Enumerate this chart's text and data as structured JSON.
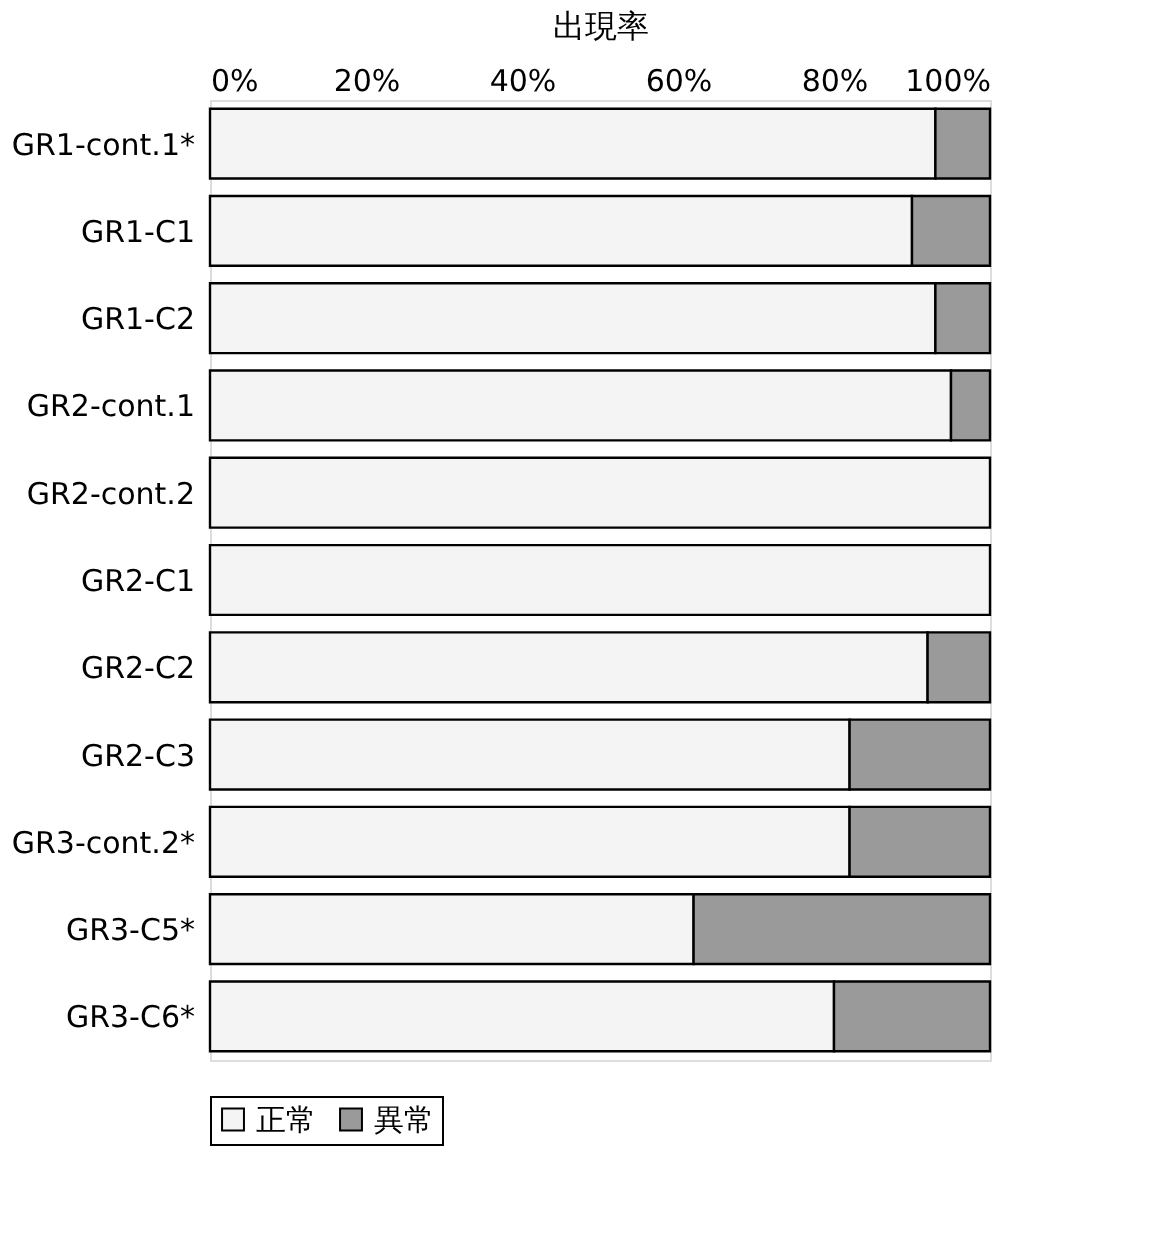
{
  "chart_data": {
    "type": "bar",
    "orientation": "horizontal",
    "stacked": true,
    "xlabel": "出現率",
    "categories": [
      "GR1-cont.1*",
      "GR1-C1",
      "GR1-C2",
      "GR2-cont.1",
      "GR2-cont.2",
      "GR2-C1",
      "GR2-C2",
      "GR2-C3",
      "GR3-cont.2*",
      "GR3-C5*",
      "GR3-C6*"
    ],
    "series": [
      {
        "name": "正常",
        "color": "#f4f4f4",
        "values": [
          93,
          90,
          93,
          95,
          100,
          100,
          92,
          82,
          82,
          62,
          80
        ]
      },
      {
        "name": "異常",
        "color": "#9a9a9a",
        "values": [
          7,
          10,
          7,
          5,
          0,
          0,
          8,
          18,
          18,
          38,
          20
        ]
      }
    ],
    "xlim": [
      0,
      100
    ],
    "xticks": [
      {
        "value": 0,
        "label": "0%"
      },
      {
        "value": 20,
        "label": "20%"
      },
      {
        "value": 40,
        "label": "40%"
      },
      {
        "value": 60,
        "label": "60%"
      },
      {
        "value": 80,
        "label": "80%"
      },
      {
        "value": 100,
        "label": "100%"
      }
    ],
    "grid": false,
    "legend": "bottom"
  }
}
